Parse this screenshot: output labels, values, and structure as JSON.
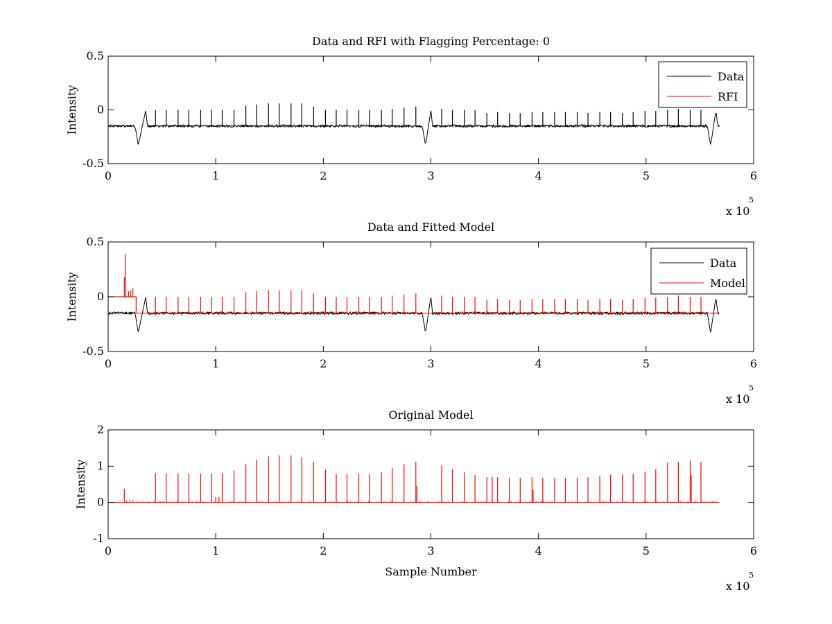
{
  "chart_data": [
    {
      "type": "line",
      "title": "Data and RFI with Flagging Percentage: 0",
      "xlabel": "",
      "ylabel": "Intensity",
      "xlim": [
        0,
        6
      ],
      "ylim": [
        -0.5,
        0.5
      ],
      "x_multiplier": "x 10",
      "x_multiplier_exp": "5",
      "xticks": [
        0,
        1,
        2,
        3,
        4,
        5,
        6
      ],
      "yticks": [
        -0.5,
        0,
        0.5
      ],
      "legend": {
        "position": "top-right",
        "entries": [
          "Data",
          "RFI"
        ]
      },
      "series": [
        {
          "name": "Data",
          "color": "#000000",
          "kind": "noisy",
          "baseline": -0.15,
          "noise": 0.012,
          "x_start": 0,
          "x_end": 5.68,
          "dips": [
            {
              "x": 0.28,
              "min": -0.33,
              "peak_x": 0.35,
              "peak": 0.0
            },
            {
              "x": 2.95,
              "min": -0.33,
              "peak_x": 3.0,
              "peak": 0.0
            },
            {
              "x": 5.6,
              "min": -0.33,
              "peak_x": 5.65,
              "peak": 0.0
            }
          ],
          "spikes": [
            [
              0.44,
              0.0
            ],
            [
              0.54,
              0.0
            ],
            [
              0.65,
              0.0
            ],
            [
              0.75,
              0.0
            ],
            [
              0.86,
              0.0
            ],
            [
              0.96,
              0.0
            ],
            [
              1.06,
              0.0
            ],
            [
              1.17,
              0.0
            ],
            [
              1.28,
              0.04
            ],
            [
              1.38,
              0.05
            ],
            [
              1.49,
              0.06
            ],
            [
              1.59,
              0.06
            ],
            [
              1.7,
              0.06
            ],
            [
              1.8,
              0.06
            ],
            [
              1.91,
              0.03
            ],
            [
              2.02,
              0.0
            ],
            [
              2.12,
              0.0
            ],
            [
              2.22,
              0.0
            ],
            [
              2.33,
              0.0
            ],
            [
              2.43,
              0.0
            ],
            [
              2.54,
              0.0
            ],
            [
              2.64,
              0.01
            ],
            [
              2.75,
              0.02
            ],
            [
              2.86,
              0.03
            ],
            [
              3.1,
              0.01
            ],
            [
              3.2,
              0.0
            ],
            [
              3.31,
              0.0
            ],
            [
              3.41,
              0.0
            ],
            [
              3.52,
              -0.03
            ],
            [
              3.62,
              -0.02
            ],
            [
              3.73,
              -0.03
            ],
            [
              3.83,
              -0.03
            ],
            [
              3.94,
              -0.02
            ],
            [
              4.04,
              -0.02
            ],
            [
              4.15,
              -0.02
            ],
            [
              4.25,
              -0.02
            ],
            [
              4.36,
              -0.02
            ],
            [
              4.46,
              -0.03
            ],
            [
              4.57,
              -0.02
            ],
            [
              4.67,
              -0.02
            ],
            [
              4.78,
              -0.03
            ],
            [
              4.88,
              -0.02
            ],
            [
              4.99,
              -0.01
            ],
            [
              5.09,
              -0.01
            ],
            [
              5.2,
              0.0
            ],
            [
              5.3,
              0.01
            ],
            [
              5.41,
              0.0
            ],
            [
              5.51,
              0.0
            ]
          ]
        },
        {
          "name": "RFI",
          "color": "#ff0000",
          "kind": "none"
        }
      ]
    },
    {
      "type": "line",
      "title": "Data and Fitted Model",
      "xlabel": "",
      "ylabel": "Intensity",
      "xlim": [
        0,
        6
      ],
      "ylim": [
        -0.5,
        0.5
      ],
      "x_multiplier": "x 10",
      "x_multiplier_exp": "5",
      "xticks": [
        0,
        1,
        2,
        3,
        4,
        5,
        6
      ],
      "yticks": [
        -0.5,
        0,
        0.5
      ],
      "legend": {
        "position": "top-right",
        "entries": [
          "Data",
          "Model"
        ]
      },
      "series": [
        {
          "name": "Data",
          "color": "#000000",
          "kind": "noisy",
          "baseline": -0.15,
          "noise": 0.012,
          "x_start": 0,
          "x_end": 5.68,
          "dips": [
            {
              "x": 0.28,
              "min": -0.33,
              "peak_x": 0.35,
              "peak": 0.0
            },
            {
              "x": 2.95,
              "min": -0.33,
              "peak_x": 3.0,
              "peak": 0.0
            },
            {
              "x": 5.6,
              "min": -0.33,
              "peak_x": 5.65,
              "peak": 0.0
            }
          ],
          "spikes": []
        },
        {
          "name": "Model",
          "color": "#ff0000",
          "kind": "model",
          "baseline": -0.15,
          "early_level": 0.0,
          "early_end": 0.26,
          "x_start": 0,
          "x_end": 5.68,
          "early_spikes": [
            [
              0.15,
              0.18
            ],
            [
              0.16,
              0.39
            ],
            [
              0.19,
              0.05
            ],
            [
              0.21,
              0.06
            ],
            [
              0.23,
              0.08
            ]
          ],
          "spikes": [
            [
              0.44,
              0.0
            ],
            [
              0.54,
              0.0
            ],
            [
              0.65,
              0.0
            ],
            [
              0.75,
              0.0
            ],
            [
              0.86,
              0.0
            ],
            [
              0.96,
              0.0
            ],
            [
              1.06,
              0.0
            ],
            [
              1.17,
              0.0
            ],
            [
              1.28,
              0.04
            ],
            [
              1.38,
              0.05
            ],
            [
              1.49,
              0.06
            ],
            [
              1.59,
              0.06
            ],
            [
              1.7,
              0.06
            ],
            [
              1.8,
              0.06
            ],
            [
              1.91,
              0.03
            ],
            [
              2.02,
              0.0
            ],
            [
              2.12,
              0.0
            ],
            [
              2.22,
              0.0
            ],
            [
              2.33,
              0.0
            ],
            [
              2.43,
              0.0
            ],
            [
              2.54,
              0.0
            ],
            [
              2.64,
              0.01
            ],
            [
              2.75,
              0.02
            ],
            [
              2.86,
              0.03
            ],
            [
              3.1,
              0.01
            ],
            [
              3.2,
              0.0
            ],
            [
              3.31,
              0.0
            ],
            [
              3.41,
              0.0
            ],
            [
              3.52,
              -0.03
            ],
            [
              3.62,
              -0.02
            ],
            [
              3.73,
              -0.03
            ],
            [
              3.83,
              -0.03
            ],
            [
              3.94,
              -0.02
            ],
            [
              4.04,
              -0.02
            ],
            [
              4.15,
              -0.02
            ],
            [
              4.25,
              -0.02
            ],
            [
              4.36,
              -0.02
            ],
            [
              4.46,
              -0.03
            ],
            [
              4.57,
              -0.02
            ],
            [
              4.67,
              -0.02
            ],
            [
              4.78,
              -0.03
            ],
            [
              4.88,
              -0.02
            ],
            [
              4.99,
              -0.01
            ],
            [
              5.09,
              -0.01
            ],
            [
              5.2,
              0.0
            ],
            [
              5.3,
              0.01
            ],
            [
              5.41,
              0.0
            ],
            [
              5.51,
              0.0
            ]
          ]
        }
      ]
    },
    {
      "type": "line",
      "title": "Original Model",
      "xlabel": "Sample Number",
      "ylabel": "Intensity",
      "xlim": [
        0,
        6
      ],
      "ylim": [
        -1,
        2
      ],
      "x_multiplier": "x 10",
      "x_multiplier_exp": "5",
      "xticks": [
        0,
        1,
        2,
        3,
        4,
        5,
        6
      ],
      "yticks": [
        -1,
        0,
        1,
        2
      ],
      "legend": null,
      "series": [
        {
          "name": "",
          "color": "#ff0000",
          "kind": "spikes",
          "baseline": 0,
          "x_start": 0,
          "x_end": 5.68,
          "spikes": [
            [
              0.15,
              0.38
            ],
            [
              0.17,
              0.05
            ],
            [
              0.2,
              0.06
            ],
            [
              0.23,
              0.06
            ],
            [
              0.44,
              0.8
            ],
            [
              0.54,
              0.8
            ],
            [
              0.65,
              0.8
            ],
            [
              0.75,
              0.8
            ],
            [
              0.86,
              0.8
            ],
            [
              0.96,
              0.8
            ],
            [
              1.0,
              0.15
            ],
            [
              1.03,
              0.15
            ],
            [
              1.06,
              0.8
            ],
            [
              1.17,
              0.88
            ],
            [
              1.28,
              1.05
            ],
            [
              1.38,
              1.18
            ],
            [
              1.49,
              1.27
            ],
            [
              1.59,
              1.3
            ],
            [
              1.7,
              1.3
            ],
            [
              1.8,
              1.25
            ],
            [
              1.91,
              1.12
            ],
            [
              2.02,
              0.9
            ],
            [
              2.12,
              0.78
            ],
            [
              2.22,
              0.78
            ],
            [
              2.33,
              0.78
            ],
            [
              2.43,
              0.78
            ],
            [
              2.54,
              0.83
            ],
            [
              2.64,
              0.95
            ],
            [
              2.75,
              1.05
            ],
            [
              2.86,
              1.12
            ],
            [
              2.87,
              0.45
            ],
            [
              3.1,
              1.02
            ],
            [
              3.2,
              0.92
            ],
            [
              3.31,
              0.83
            ],
            [
              3.41,
              0.76
            ],
            [
              3.52,
              0.7
            ],
            [
              3.57,
              0.7
            ],
            [
              3.62,
              0.7
            ],
            [
              3.73,
              0.68
            ],
            [
              3.83,
              0.68
            ],
            [
              3.94,
              0.7
            ],
            [
              3.95,
              0.35
            ],
            [
              4.04,
              0.68
            ],
            [
              4.15,
              0.68
            ],
            [
              4.25,
              0.68
            ],
            [
              4.36,
              0.68
            ],
            [
              4.46,
              0.7
            ],
            [
              4.57,
              0.72
            ],
            [
              4.67,
              0.76
            ],
            [
              4.78,
              0.77
            ],
            [
              4.88,
              0.78
            ],
            [
              4.99,
              0.85
            ],
            [
              5.09,
              0.92
            ],
            [
              5.2,
              1.1
            ],
            [
              5.3,
              1.12
            ],
            [
              5.41,
              1.15
            ],
            [
              5.42,
              0.75
            ],
            [
              5.51,
              1.12
            ]
          ]
        }
      ]
    }
  ]
}
